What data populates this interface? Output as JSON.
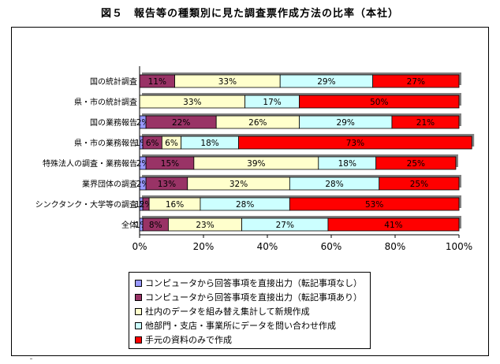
{
  "title": "図５　報告等の種類別に見た調査票作成方法の比率（本社）",
  "colors": {
    "series": [
      "#9999ff",
      "#993366",
      "#ffffcc",
      "#ccffff",
      "#ff0000"
    ]
  },
  "legend": {
    "items": [
      "コンピュータから回答事項を直接出力（転記事項なし）",
      "コンピュータから回答事項を直接出力（転記事項あり）",
      "社内のデータを組み替え集計して新規作成",
      "他部門・支店・事業所にデータを問い合わせ作成",
      "手元の資料のみで作成"
    ]
  },
  "chart_data": {
    "type": "bar",
    "orientation": "horizontal",
    "stacked": true,
    "categories": [
      "国の統計調査",
      "県・市の統計調査",
      "国の業務報告",
      "県・市の業務報告",
      "特殊法人の調査・業務報告",
      "業界団体の調査",
      "シンクタンク・大学等の調査",
      "全体"
    ],
    "series": [
      {
        "name": "コンピュータから回答事項を直接出力（転記事項なし）",
        "values": [
          0,
          0,
          2,
          1,
          2,
          2,
          1,
          1
        ]
      },
      {
        "name": "コンピュータから回答事項を直接出力（転記事項あり）",
        "values": [
          11,
          0,
          22,
          6,
          15,
          13,
          2,
          8
        ]
      },
      {
        "name": "社内のデータを組み替え集計して新規作成",
        "values": [
          33,
          33,
          26,
          6,
          39,
          32,
          16,
          23
        ]
      },
      {
        "name": "他部門・支店・事業所にデータを問い合わせ作成",
        "values": [
          29,
          17,
          29,
          18,
          18,
          28,
          28,
          27
        ]
      },
      {
        "name": "手元の資料のみで作成",
        "values": [
          27,
          50,
          21,
          73,
          25,
          25,
          53,
          41
        ]
      }
    ],
    "labels": [
      [
        "",
        "11%",
        "33%",
        "29%",
        "27%"
      ],
      [
        "",
        "",
        "33%",
        "17%",
        "50%"
      ],
      [
        "2%",
        "22%",
        "26%",
        "29%",
        "21%"
      ],
      [
        "1%",
        "6%",
        "6%",
        "18%",
        "73%"
      ],
      [
        "2%",
        "15%",
        "39%",
        "18%",
        "25%"
      ],
      [
        "2%",
        "13%",
        "32%",
        "28%",
        "25%"
      ],
      [
        "1%",
        "2%",
        "16%",
        "28%",
        "53%"
      ],
      [
        "1%",
        "8%",
        "23%",
        "27%",
        "41%"
      ]
    ],
    "xlim": [
      0,
      100
    ],
    "xticks": [
      "0%",
      "20%",
      "40%",
      "60%",
      "80%",
      "100%"
    ],
    "grid": false,
    "legend_position": "bottom"
  }
}
